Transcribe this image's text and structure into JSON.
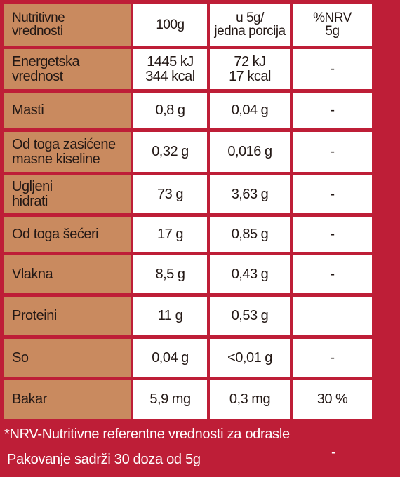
{
  "table": {
    "header": [
      "Nutritivne\nvrednosti",
      "100g",
      "u 5g/\njedna porcija",
      "%NRV\n5g"
    ],
    "rows": [
      [
        "Energetska\nvrednost",
        "1445 kJ\n344 kcal",
        "72 kJ\n17 kcal",
        "-"
      ],
      [
        "Masti",
        "0,8 g",
        "0,04 g",
        "-"
      ],
      [
        "Od toga zasićene\nmasne kiseline",
        "0,32 g",
        "0,016 g",
        "-"
      ],
      [
        "Ugljeni\nhidrati",
        "73 g",
        "3,63 g",
        "-"
      ],
      [
        "Od toga šećeri",
        "17 g",
        "0,85 g",
        "-"
      ],
      [
        "Vlakna",
        "8,5 g",
        "0,43 g",
        "-"
      ],
      [
        "Proteini",
        "11 g",
        "0,53 g",
        ""
      ],
      [
        "So",
        "0,04 g",
        "<0,01 g",
        "-"
      ],
      [
        "Bakar",
        "5,9 mg",
        "0,3 mg",
        "30 %"
      ]
    ]
  },
  "footer": {
    "note": "*NRV-Nutritivne referentne vrednosti za odrasle",
    "package": "Pakovanje sadrži 30 doza od 5g",
    "mark": "-"
  }
}
